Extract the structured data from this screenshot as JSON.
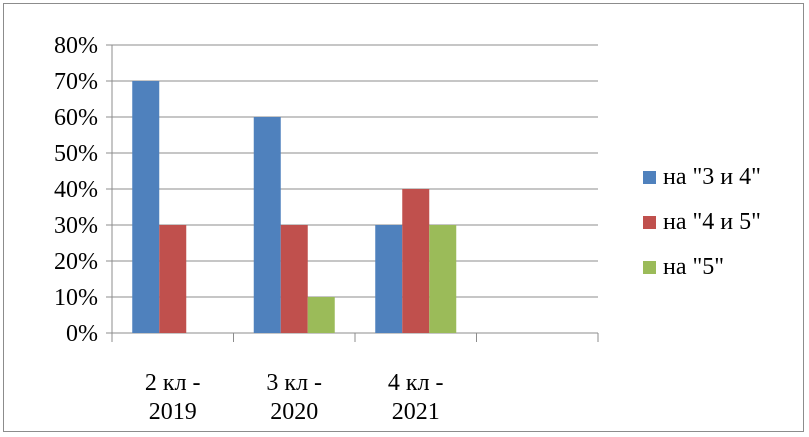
{
  "chart_data": {
    "type": "bar",
    "categories": [
      {
        "line1": "2 кл -",
        "line2": "2019"
      },
      {
        "line1": "3 кл -",
        "line2": "2020"
      },
      {
        "line1": "4 кл -",
        "line2": "2021"
      },
      {
        "line1": "",
        "line2": ""
      }
    ],
    "series": [
      {
        "name": "на \"3 и 4\"",
        "color": "#4F81BD",
        "values": [
          70,
          60,
          30,
          null
        ]
      },
      {
        "name": "на \"4 и 5\"",
        "color": "#C0504D",
        "values": [
          30,
          30,
          40,
          null
        ]
      },
      {
        "name": "на \"5\"",
        "color": "#9BBB59",
        "values": [
          0,
          10,
          30,
          null
        ]
      }
    ],
    "yticks": [
      "0%",
      "10%",
      "20%",
      "30%",
      "40%",
      "50%",
      "60%",
      "70%",
      "80%"
    ],
    "ylim": [
      0,
      80
    ],
    "grid": true,
    "legend_position": "right",
    "title": "",
    "xlabel": "",
    "ylabel": ""
  }
}
